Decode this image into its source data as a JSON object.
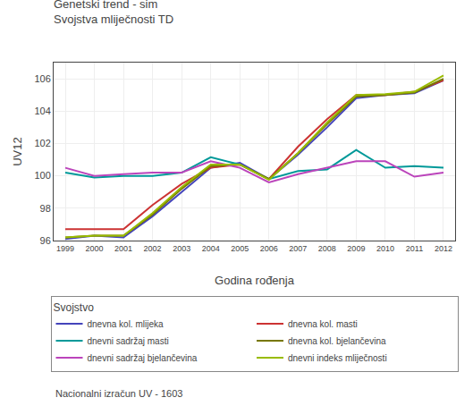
{
  "chart_data": {
    "type": "line",
    "title": "Genetski trend - sim",
    "subtitle": "Svojstva mliječnosti TD",
    "xlabel": "Godina rođenja",
    "ylabel": "UV12",
    "annotations": [
      "Nacionalni izračun UV - 1603"
    ],
    "legend_title": "Svojstvo",
    "legend": "bottom",
    "grid": true,
    "x": [
      1999,
      2000,
      2001,
      2002,
      2003,
      2004,
      2005,
      2006,
      2007,
      2008,
      2009,
      2010,
      2011,
      2012
    ],
    "series": [
      {
        "name": "dnevna kol. mlijeka",
        "color": "#4444bb",
        "values": [
          96.1,
          96.3,
          96.2,
          97.5,
          99.0,
          100.5,
          100.8,
          99.8,
          101.3,
          103.0,
          104.8,
          105.0,
          105.1,
          105.9
        ]
      },
      {
        "name": "dnevna kol. masti",
        "color": "#cc3333",
        "values": [
          96.7,
          96.7,
          96.7,
          98.2,
          99.5,
          100.5,
          100.7,
          99.8,
          101.8,
          103.5,
          105.0,
          105.0,
          105.2,
          105.9
        ]
      },
      {
        "name": "dnevni sadržaj masti",
        "color": "#009999",
        "values": [
          100.2,
          99.9,
          100.0,
          100.0,
          100.2,
          101.15,
          100.7,
          99.8,
          100.3,
          100.4,
          101.6,
          100.5,
          100.6,
          100.5
        ]
      },
      {
        "name": "dnevna kol. bjelančevina",
        "color": "#777700",
        "values": [
          96.2,
          96.3,
          96.3,
          97.6,
          99.2,
          100.6,
          100.7,
          99.8,
          101.4,
          103.2,
          104.9,
          105.0,
          105.15,
          106.0
        ]
      },
      {
        "name": "dnevni sadržaj bjelančevina",
        "color": "#bb44bb",
        "values": [
          100.5,
          100.0,
          100.1,
          100.2,
          100.2,
          100.9,
          100.5,
          99.6,
          100.1,
          100.5,
          100.9,
          100.9,
          99.95,
          100.2
        ]
      },
      {
        "name": "dnevni indeks mliječnosti",
        "color": "#99bb00",
        "values": [
          96.2,
          96.3,
          96.3,
          97.7,
          99.3,
          100.7,
          100.7,
          99.75,
          101.4,
          103.3,
          105.0,
          105.05,
          105.2,
          106.2
        ]
      }
    ],
    "xlim": [
      1998.6,
      2012.4
    ],
    "xticks": [
      1999,
      2000,
      2001,
      2002,
      2003,
      2004,
      2005,
      2006,
      2007,
      2008,
      2009,
      2010,
      2011,
      2012
    ],
    "ylim": [
      96,
      107
    ],
    "yticks": [
      96,
      98,
      100,
      102,
      104,
      106
    ]
  }
}
